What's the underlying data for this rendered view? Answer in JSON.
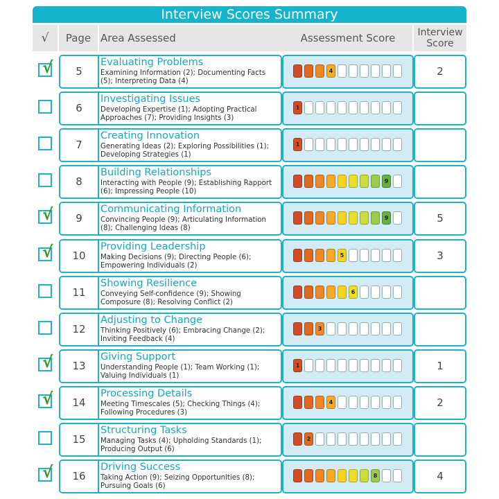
{
  "title": "Interview Scores Summary",
  "headers": {
    "check": "√",
    "page": "Page",
    "area": "Area Assessed",
    "assessment": "Assessment Score",
    "interview_line1": "Interview",
    "interview_line2": "Score"
  },
  "scale_colors": [
    "#d24d26",
    "#e2671f",
    "#f08726",
    "#f6aa25",
    "#f6d321",
    "#eadf29",
    "#c9dd3d",
    "#9ccc49",
    "#6aae3c",
    "#ffffff"
  ],
  "rows": [
    {
      "checked": true,
      "page": "5",
      "title": "Evaluating Problems",
      "desc": "Examining Information (2); Documenting Facts (5); Interpreting Data (4)",
      "assessment": 4,
      "interview": "2"
    },
    {
      "checked": false,
      "page": "6",
      "title": "Investigating Issues",
      "desc": "Developing Expertise (1); Adopting Practical Approaches (7); Providing Insights (3)",
      "assessment": 1,
      "interview": ""
    },
    {
      "checked": false,
      "page": "7",
      "title": "Creating Innovation",
      "desc": "Generating Ideas (2); Exploring Possibilities (1); Developing Strategies (1)",
      "assessment": 1,
      "interview": ""
    },
    {
      "checked": false,
      "page": "8",
      "title": "Building Relationships",
      "desc": "Interacting with People (9); Establishing Rapport (6); Impressing People (10)",
      "assessment": 9,
      "interview": ""
    },
    {
      "checked": true,
      "page": "9",
      "title": "Communicating Information",
      "desc": "Convincing People (9); Articulating Information (8); Challenging Ideas (8)",
      "assessment": 9,
      "interview": "5"
    },
    {
      "checked": true,
      "page": "10",
      "title": "Providing Leadership",
      "desc": "Making Decisions (9); Directing People (6); Empowering Individuals (2)",
      "assessment": 5,
      "interview": "3"
    },
    {
      "checked": false,
      "page": "11",
      "title": "Showing Resilience",
      "desc": "Conveying Self-confidence (9); Showing Composure (8); Resolving Conflict (2)",
      "assessment": 6,
      "interview": ""
    },
    {
      "checked": false,
      "page": "12",
      "title": "Adjusting to Change",
      "desc": "Thinking Positively (6); Embracing Change (2); Inviting Feedback (4)",
      "assessment": 3,
      "interview": ""
    },
    {
      "checked": true,
      "page": "13",
      "title": "Giving Support",
      "desc": "Understanding People (1); Team Working (1); Valuing Individuals (1)",
      "assessment": 1,
      "interview": "1"
    },
    {
      "checked": true,
      "page": "14",
      "title": "Processing Details",
      "desc": "Meeting Timescales (5); Checking Things (4); Following Procedures (3)",
      "assessment": 4,
      "interview": "2"
    },
    {
      "checked": false,
      "page": "15",
      "title": "Structuring Tasks",
      "desc": "Managing Tasks (4); Upholding Standards (1); Producing Output (6)",
      "assessment": 2,
      "interview": ""
    },
    {
      "checked": true,
      "page": "16",
      "title": "Driving Success",
      "desc": "Taking Action (9); Seizing Opportunities (8); Pursuing Goals (6)",
      "assessment": 8,
      "interview": "4"
    }
  ]
}
